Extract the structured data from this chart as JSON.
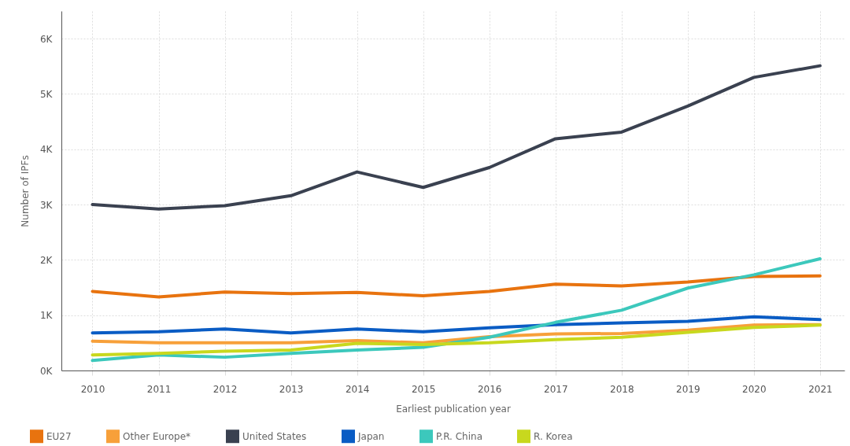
{
  "chart_data": {
    "type": "line",
    "xlabel": "Earliest publication year",
    "ylabel": "Number of IPFs",
    "categories": [
      "2010",
      "2011",
      "2012",
      "2013",
      "2014",
      "2015",
      "2016",
      "2017",
      "2018",
      "2019",
      "2020",
      "2021"
    ],
    "ylim": [
      0,
      6500
    ],
    "yticks": [
      {
        "value": 0,
        "label": "0K"
      },
      {
        "value": 1000,
        "label": "1K"
      },
      {
        "value": 2000,
        "label": "2K"
      },
      {
        "value": 3000,
        "label": "3K"
      },
      {
        "value": 4000,
        "label": "4K"
      },
      {
        "value": 5000,
        "label": "5K"
      },
      {
        "value": 6000,
        "label": "6K"
      }
    ],
    "grid": true,
    "legend": "bottom",
    "marker": "none",
    "line_style": "solid",
    "series": [
      {
        "name": "EU27",
        "color": "#e8730f",
        "values": [
          1430,
          1330,
          1420,
          1390,
          1410,
          1350,
          1430,
          1560,
          1530,
          1600,
          1700,
          1710
        ]
      },
      {
        "name": "Other Europe*",
        "color": "#f7a03a",
        "values": [
          530,
          500,
          500,
          500,
          540,
          500,
          610,
          660,
          670,
          730,
          820,
          830
        ]
      },
      {
        "name": "United States",
        "color": "#3a4150",
        "values": [
          3000,
          2920,
          2980,
          3160,
          3590,
          3310,
          3670,
          4190,
          4310,
          4780,
          5300,
          5510
        ]
      },
      {
        "name": "Japan",
        "color": "#0a5cc4",
        "values": [
          680,
          700,
          750,
          680,
          750,
          700,
          770,
          830,
          860,
          890,
          970,
          920
        ]
      },
      {
        "name": "P.R. China",
        "color": "#3cc8bc",
        "values": [
          180,
          280,
          240,
          310,
          370,
          420,
          600,
          870,
          1090,
          1490,
          1730,
          2020
        ]
      },
      {
        "name": "R. Korea",
        "color": "#c8d81e",
        "values": [
          280,
          310,
          350,
          370,
          490,
          470,
          500,
          560,
          600,
          690,
          780,
          820
        ]
      }
    ]
  }
}
